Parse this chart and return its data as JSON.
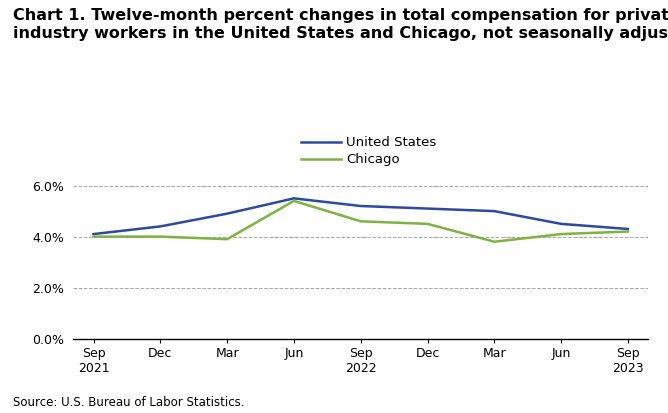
{
  "title_line1": "Chart 1. Twelve-month percent changes in total compensation for private",
  "title_line2": "industry workers in the United States and Chicago, not seasonally adjusted",
  "x_labels": [
    "Sep\n2021",
    "Dec",
    "Mar",
    "Jun",
    "Sep\n2022",
    "Dec",
    "Mar",
    "Jun",
    "Sep\n2023"
  ],
  "us_values": [
    4.1,
    4.4,
    4.9,
    5.5,
    5.2,
    5.1,
    5.0,
    4.5,
    4.3
  ],
  "chicago_values": [
    4.0,
    4.0,
    3.9,
    5.4,
    4.6,
    4.5,
    3.8,
    4.1,
    4.2
  ],
  "us_color": "#2E4A9E",
  "chicago_color": "#7CB342",
  "us_label": "United States",
  "chicago_label": "Chicago",
  "ylim": [
    0.0,
    6.8
  ],
  "yticks": [
    0.0,
    2.0,
    4.0,
    6.0
  ],
  "ytick_labels": [
    "0.0%",
    "2.0%",
    "4.0%",
    "6.0%"
  ],
  "source_text": "Source: U.S. Bureau of Labor Statistics.",
  "grid_color": "#AAAAAA",
  "line_width": 1.8,
  "title_fontsize": 11.5,
  "legend_fontsize": 9.5,
  "tick_fontsize": 9,
  "source_fontsize": 8.5
}
